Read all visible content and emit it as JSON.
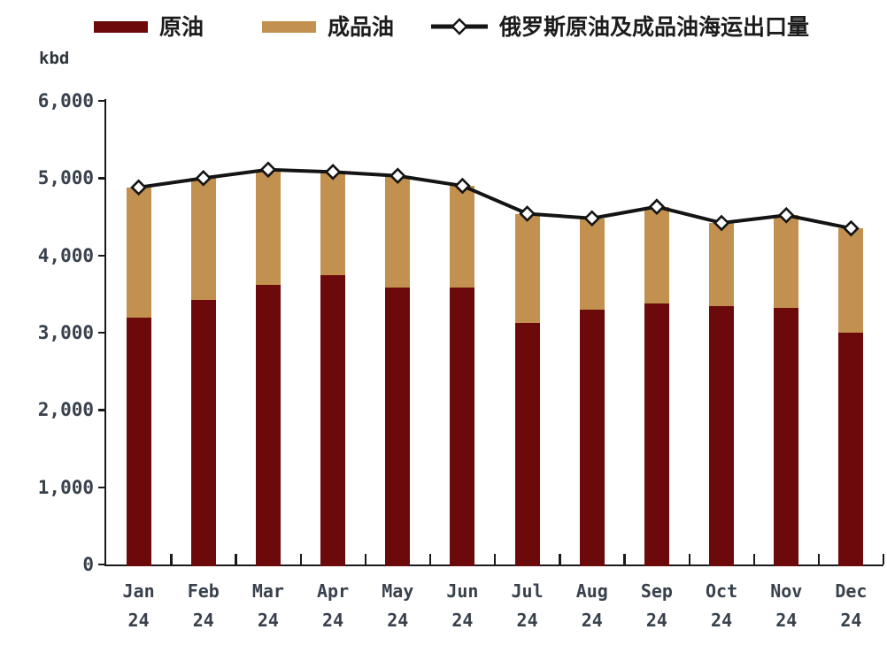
{
  "chart_data": {
    "type": "bar+line",
    "title": "",
    "unit": "kbd",
    "categories": [
      "Jan 24",
      "Feb 24",
      "Mar 24",
      "Apr 24",
      "May 24",
      "Jun 24",
      "Jul 24",
      "Aug 24",
      "Sep 24",
      "Oct 24",
      "Nov 24",
      "Dec 24"
    ],
    "ylim": [
      0,
      6000
    ],
    "y_tick_step": 1000,
    "y_tick_labels": [
      "6,000",
      "5,000",
      "4,000",
      "3,000",
      "2,000",
      "1,000",
      "0"
    ],
    "grid": false,
    "legend_position": "top",
    "bar_mode": "stacked",
    "axis_color": "#1a1a1a",
    "label_color": "#39414d",
    "marker_fill": "#ffffff",
    "series": [
      {
        "name": "原油",
        "type": "bar",
        "color": "#6B090B",
        "values": [
          3190,
          3420,
          3620,
          3740,
          3580,
          3580,
          3130,
          3300,
          3380,
          3340,
          3320,
          3000
        ]
      },
      {
        "name": "成品油",
        "type": "bar",
        "color": "#C2914F",
        "values": [
          1690,
          1580,
          1490,
          1340,
          1450,
          1320,
          1410,
          1180,
          1250,
          1080,
          1200,
          1350
        ]
      },
      {
        "name": "俄罗斯原油及成品油海运出口量",
        "type": "line",
        "color": "#141414",
        "marker": "open-diamond",
        "values": [
          4880,
          5000,
          5110,
          5080,
          5030,
          4900,
          4540,
          4480,
          4630,
          4420,
          4520,
          4350
        ]
      }
    ]
  }
}
